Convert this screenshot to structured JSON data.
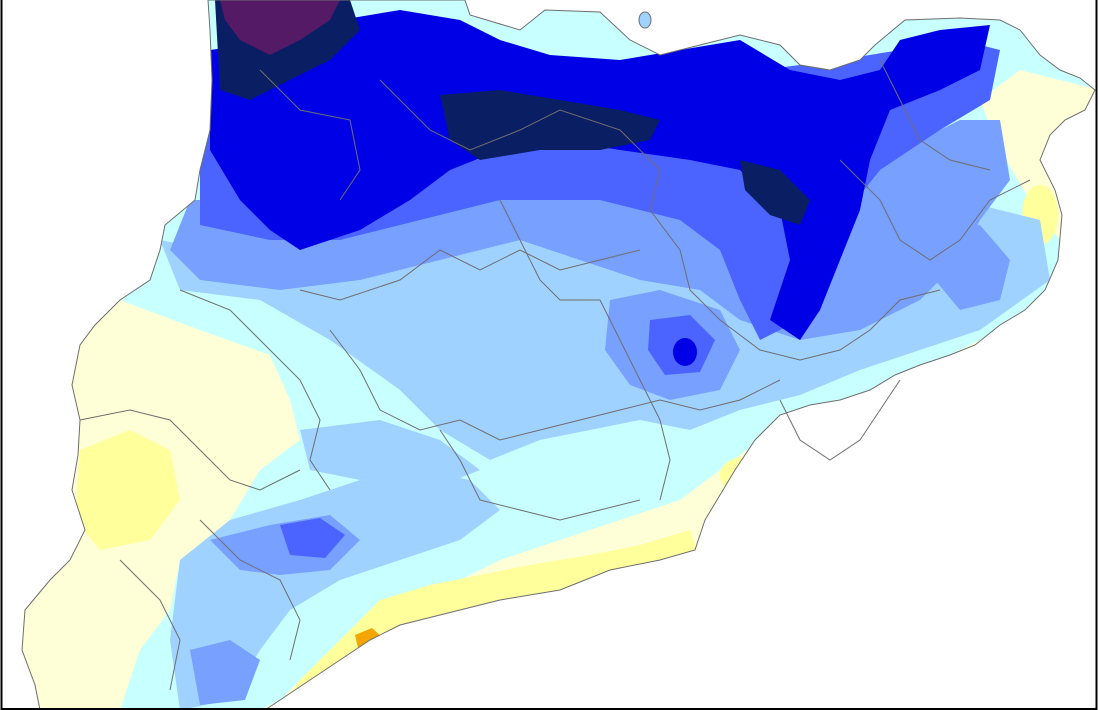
{
  "map": {
    "region": "Catalonia",
    "type": "choropleth-precipitation",
    "legend_visible": false,
    "palette": {
      "sea": "#ffffff",
      "class_1_driest": "#ffff9c",
      "class_2": "#ffffd7",
      "class_3": "#c8ffff",
      "class_4": "#a0d2ff",
      "class_5": "#78a0ff",
      "class_6": "#4b64ff",
      "class_7": "#0000e6",
      "class_8": "#0a1e64",
      "class_9_wettest": "#551a66",
      "local_max_orange": "#f5a500",
      "border_line": "#6e6e6e",
      "frame": "#000000"
    }
  }
}
